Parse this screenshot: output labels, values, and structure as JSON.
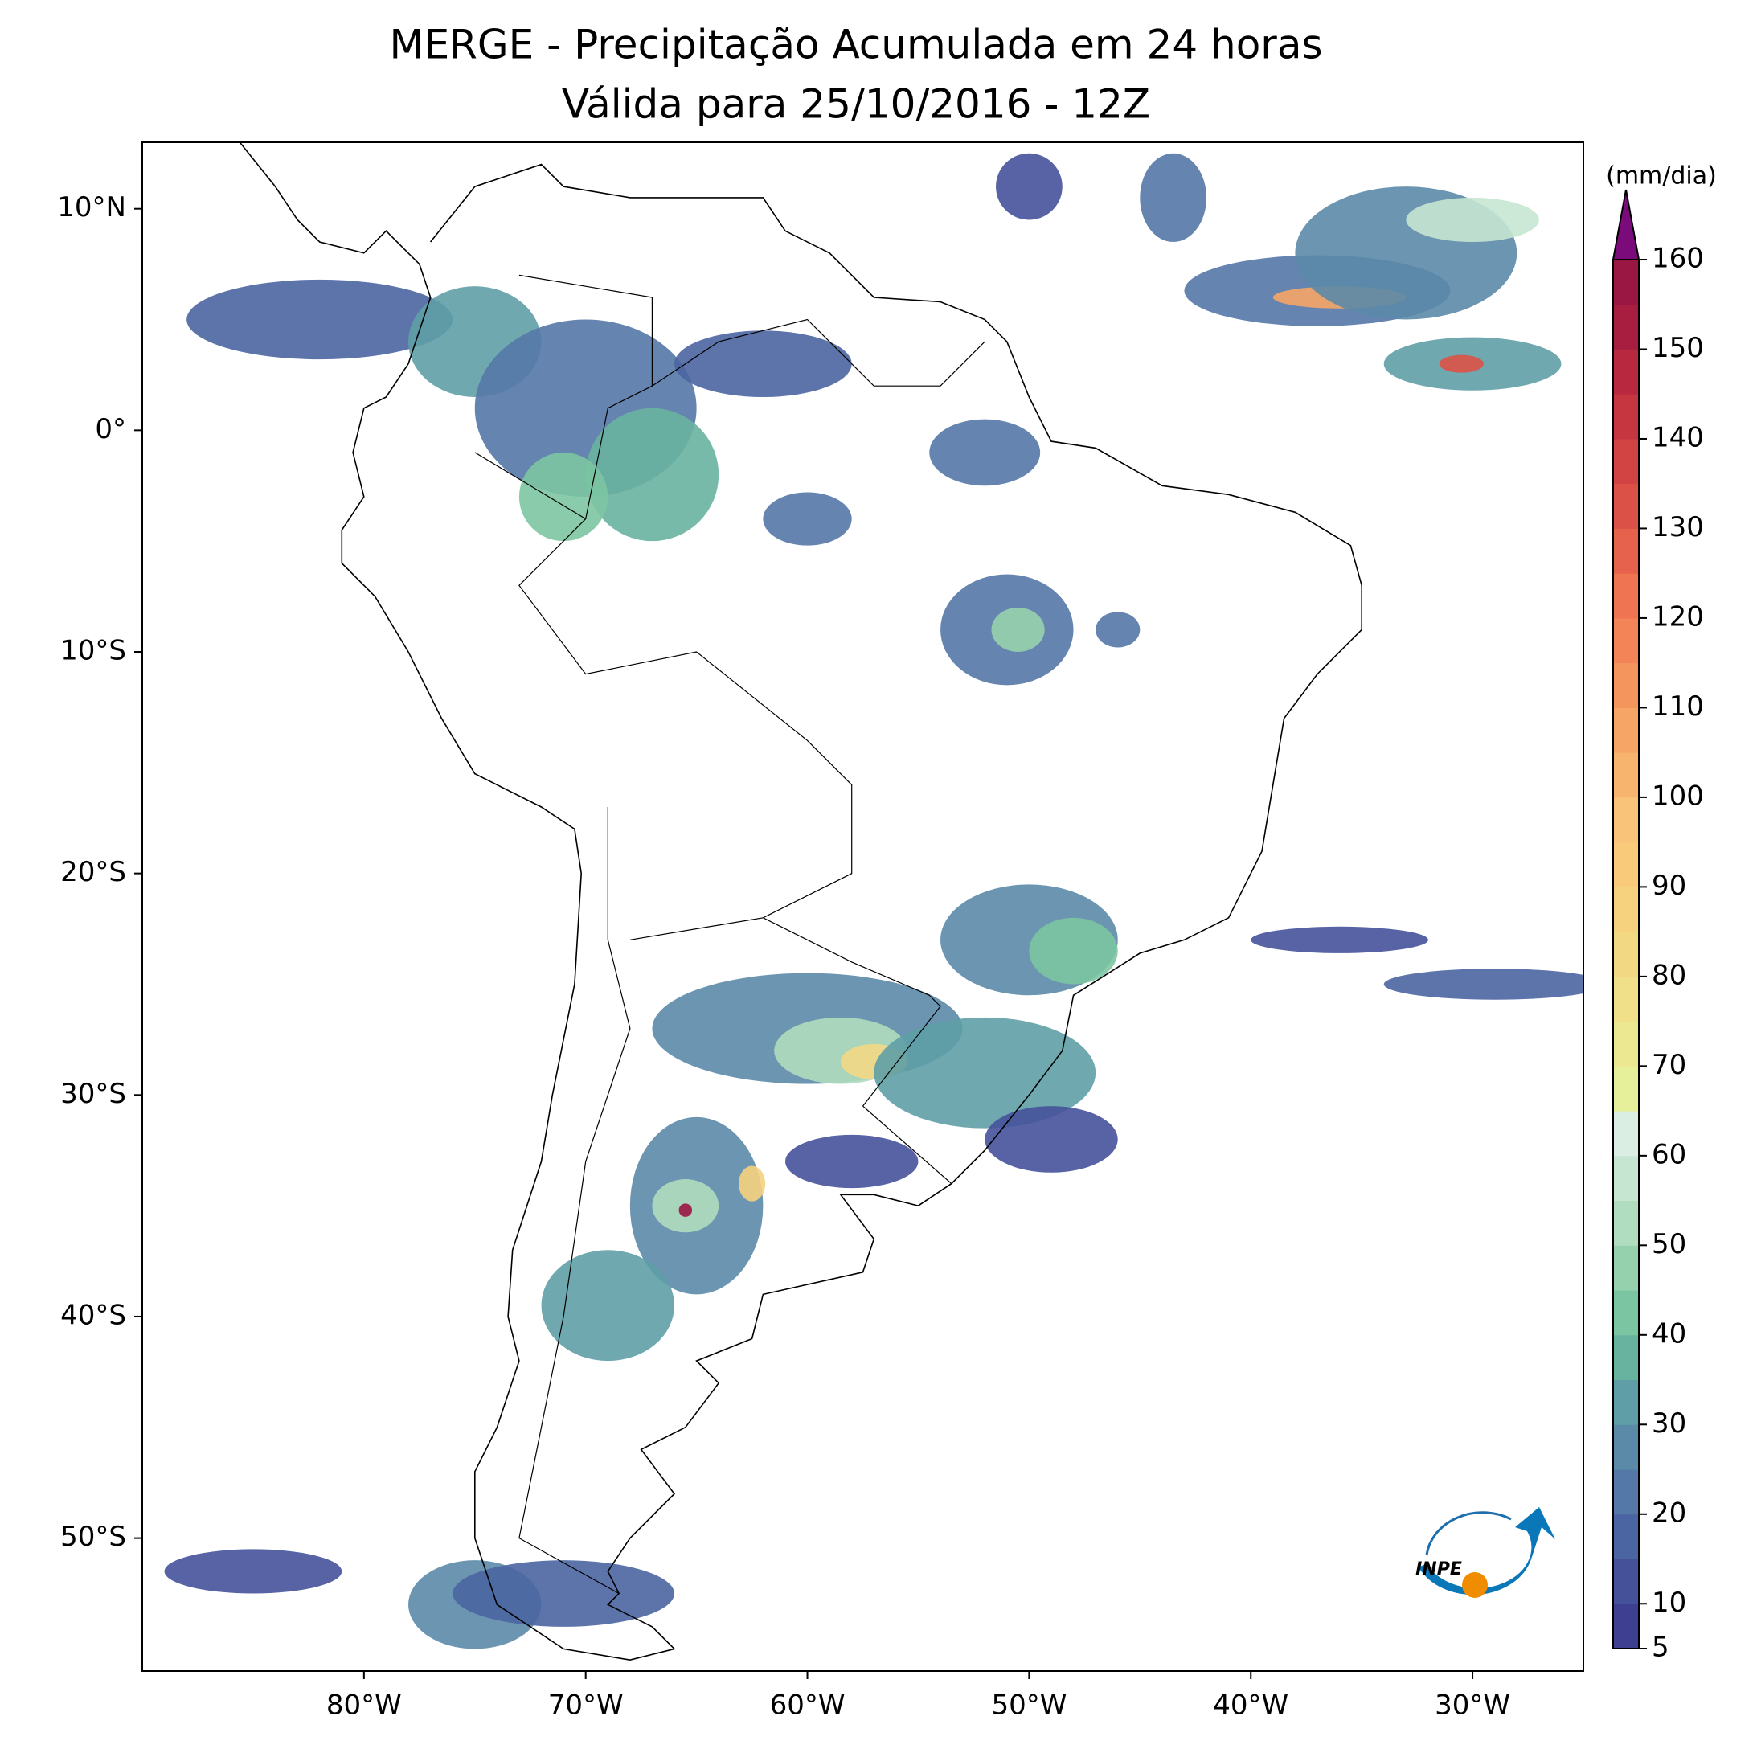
{
  "map": {
    "title": "MERGE - Precipitação Acumulada em 24 horas",
    "subtitle": "Válida para 25/10/2016 - 12Z",
    "xlim": [
      -90,
      -25
    ],
    "ylim": [
      -56,
      13
    ],
    "xticks": [
      {
        "value": -80,
        "label": "80°W"
      },
      {
        "value": -70,
        "label": "70°W"
      },
      {
        "value": -60,
        "label": "60°W"
      },
      {
        "value": -50,
        "label": "50°W"
      },
      {
        "value": -40,
        "label": "40°W"
      },
      {
        "value": -30,
        "label": "30°W"
      }
    ],
    "yticks": [
      {
        "value": 10,
        "label": "10°N"
      },
      {
        "value": 0,
        "label": "0°"
      },
      {
        "value": -10,
        "label": "10°S"
      },
      {
        "value": -20,
        "label": "20°S"
      },
      {
        "value": -30,
        "label": "30°S"
      },
      {
        "value": -40,
        "label": "40°S"
      },
      {
        "value": -50,
        "label": "50°S"
      }
    ],
    "colorbar": {
      "label": "(mm/dia)",
      "lim": [
        5,
        160
      ],
      "ticks": [
        5,
        10,
        20,
        30,
        40,
        50,
        60,
        70,
        80,
        90,
        100,
        110,
        120,
        130,
        140,
        150,
        160
      ],
      "colors": [
        "#3f3f92",
        "#45529a",
        "#4b65a2",
        "#5478a7",
        "#5b8aa8",
        "#5f9ea6",
        "#68b3a0",
        "#7cc5a2",
        "#96d1ad",
        "#b0dcbf",
        "#c7e6d2",
        "#dbeee3",
        "#e6ef9a",
        "#ebe891",
        "#f0e08a",
        "#f3d884",
        "#f6d17e",
        "#f8ca7a",
        "#f9c47a",
        "#f7b46e",
        "#f6a566",
        "#f4955e",
        "#f28457",
        "#ee7452",
        "#e6624c",
        "#dc5147",
        "#d24343",
        "#c53641",
        "#b8283f",
        "#a81e40",
        "#9a1744"
      ],
      "extend_color": "#7b0b7b"
    },
    "logo": {
      "text": "INPE"
    }
  }
}
